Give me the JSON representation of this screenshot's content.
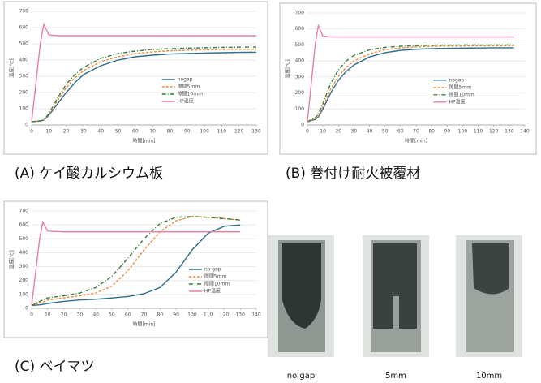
{
  "chart_data": [
    {
      "type": "line",
      "ylabel": "温度[℃]",
      "xlabel": "時間[min]",
      "xlim": [
        0,
        130
      ],
      "ylim": [
        0,
        700
      ],
      "xticks": [
        0,
        10,
        20,
        30,
        40,
        50,
        60,
        70,
        80,
        90,
        100,
        110,
        120,
        130
      ],
      "yticks": [
        0,
        100,
        200,
        300,
        400,
        500,
        600,
        700
      ],
      "grid": true,
      "legend": "right",
      "x": [
        0,
        5,
        7,
        10,
        15,
        20,
        25,
        30,
        40,
        50,
        60,
        70,
        80,
        90,
        100,
        110,
        120,
        130
      ],
      "series": [
        {
          "name": "nogap",
          "color": "#2f6d8c",
          "dash": "solid",
          "values": [
            20,
            25,
            30,
            60,
            130,
            200,
            260,
            310,
            365,
            400,
            420,
            430,
            437,
            440,
            443,
            445,
            447,
            448
          ]
        },
        {
          "name": "隙間5mm",
          "color": "#f0883a",
          "dash": "dashed",
          "values": [
            20,
            25,
            30,
            65,
            150,
            230,
            290,
            335,
            390,
            420,
            440,
            450,
            457,
            460,
            463,
            465,
            466,
            467
          ]
        },
        {
          "name": "隙間10mm",
          "color": "#3a7d3a",
          "dash": "dashdot",
          "values": [
            20,
            25,
            30,
            70,
            165,
            250,
            310,
            355,
            410,
            440,
            455,
            465,
            470,
            473,
            476,
            478,
            479,
            480
          ]
        },
        {
          "name": "HP温度",
          "color": "#e8809c",
          "dash": "solid",
          "values": [
            20,
            500,
            620,
            555,
            550,
            550,
            550,
            550,
            550,
            550,
            550,
            550,
            550,
            550,
            550,
            550,
            550,
            550
          ]
        }
      ]
    },
    {
      "type": "line",
      "ylabel": "温度[℃]",
      "xlabel": "時間[min]",
      "xlim": [
        0,
        140
      ],
      "ylim": [
        0,
        700
      ],
      "xticks": [
        0,
        10,
        20,
        30,
        40,
        50,
        60,
        70,
        80,
        90,
        100,
        110,
        120,
        130,
        140
      ],
      "yticks": [
        0,
        100,
        200,
        300,
        400,
        500,
        600,
        700
      ],
      "grid": true,
      "legend": "right",
      "x": [
        0,
        5,
        7,
        10,
        15,
        20,
        25,
        30,
        40,
        50,
        60,
        70,
        80,
        90,
        100,
        110,
        120,
        133
      ],
      "series": [
        {
          "name": "nogap",
          "color": "#2f6d8c",
          "dash": "solid",
          "values": [
            20,
            35,
            50,
            100,
            200,
            280,
            335,
            375,
            425,
            452,
            466,
            473,
            477,
            479,
            480,
            481,
            482,
            482
          ]
        },
        {
          "name": "隙間5mm",
          "color": "#f0883a",
          "dash": "dashed",
          "values": [
            20,
            40,
            55,
            115,
            225,
            305,
            360,
            400,
            445,
            470,
            482,
            488,
            491,
            493,
            494,
            495,
            495,
            495
          ]
        },
        {
          "name": "隙間10mm",
          "color": "#3a7d3a",
          "dash": "dashdot",
          "values": [
            20,
            45,
            65,
            135,
            260,
            345,
            400,
            435,
            470,
            485,
            492,
            496,
            498,
            499,
            500,
            500,
            500,
            500
          ]
        },
        {
          "name": "HP温度",
          "color": "#e8809c",
          "dash": "solid",
          "values": [
            20,
            500,
            620,
            555,
            550,
            550,
            550,
            550,
            550,
            550,
            550,
            550,
            550,
            550,
            550,
            550,
            550,
            550
          ]
        }
      ]
    },
    {
      "type": "line",
      "ylabel": "温度[℃]",
      "xlabel": "時間[min]",
      "xlim": [
        0,
        140
      ],
      "ylim": [
        0,
        700
      ],
      "xticks": [
        0,
        10,
        20,
        30,
        40,
        50,
        60,
        70,
        80,
        90,
        100,
        110,
        120,
        130,
        140
      ],
      "yticks": [
        0,
        100,
        200,
        300,
        400,
        500,
        600,
        700
      ],
      "grid": true,
      "legend": "right",
      "x": [
        0,
        5,
        7,
        10,
        20,
        30,
        40,
        50,
        60,
        70,
        80,
        90,
        100,
        110,
        120,
        130
      ],
      "series": [
        {
          "name": "no gap",
          "color": "#2f6d8c",
          "dash": "solid",
          "values": [
            20,
            25,
            28,
            35,
            50,
            60,
            65,
            75,
            85,
            105,
            150,
            260,
            420,
            540,
            590,
            600
          ]
        },
        {
          "name": "隙間5mm",
          "color": "#f0883a",
          "dash": "dashed",
          "values": [
            20,
            40,
            45,
            60,
            75,
            90,
            110,
            160,
            270,
            420,
            550,
            630,
            660,
            655,
            645,
            635
          ]
        },
        {
          "name": "隙間10mm",
          "color": "#3a7d3a",
          "dash": "dashdot",
          "values": [
            20,
            50,
            60,
            75,
            90,
            110,
            150,
            230,
            360,
            500,
            610,
            655,
            660,
            655,
            645,
            635
          ]
        },
        {
          "name": "HP温度",
          "color": "#e8809c",
          "dash": "solid",
          "values": [
            20,
            500,
            620,
            555,
            550,
            550,
            550,
            550,
            550,
            550,
            550,
            550,
            550,
            550,
            550,
            550
          ]
        }
      ]
    }
  ],
  "captions": [
    "(A) ケイ酸カルシウム板",
    "(B) 巻付け耐火被覆材",
    "(C) ベイマツ"
  ],
  "photo_labels": [
    "no gap",
    "5mm",
    "10mm"
  ]
}
